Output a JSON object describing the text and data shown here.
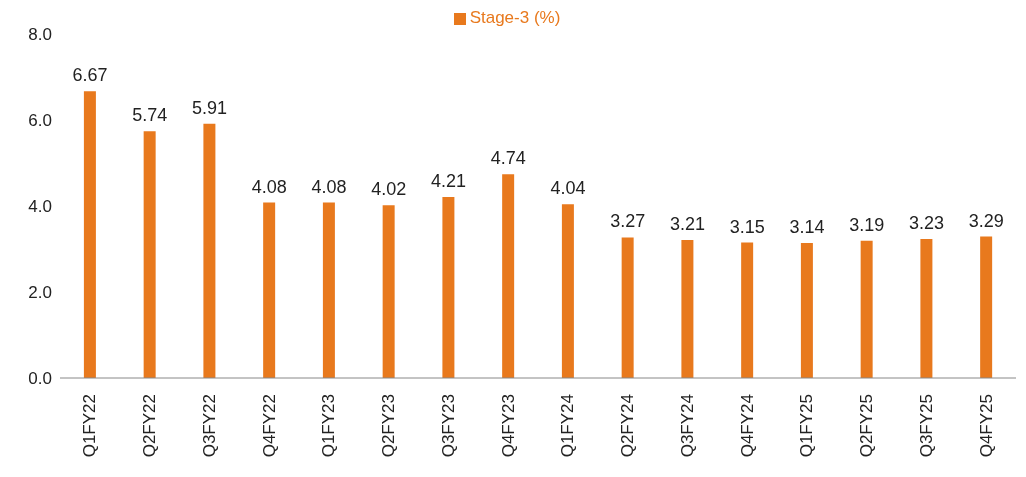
{
  "chart_data": {
    "type": "bar",
    "categories": [
      "Q1FY22",
      "Q2FY22",
      "Q3FY22",
      "Q4FY22",
      "Q1FY23",
      "Q2FY23",
      "Q3FY23",
      "Q4FY23",
      "Q1FY24",
      "Q2FY24",
      "Q3FY24",
      "Q4FY24",
      "Q1FY25",
      "Q2FY25",
      "Q3FY25",
      "Q4FY25"
    ],
    "series": [
      {
        "name": "Stage-3 (%)",
        "color": "#e8791d",
        "values": [
          6.67,
          5.74,
          5.91,
          4.08,
          4.08,
          4.02,
          4.21,
          4.74,
          4.04,
          3.27,
          3.21,
          3.15,
          3.14,
          3.19,
          3.23,
          3.29
        ]
      }
    ],
    "ylim": [
      0,
      8
    ],
    "yticks": [
      {
        "value": 0,
        "label": "0.0"
      },
      {
        "value": 2,
        "label": "2.0"
      },
      {
        "value": 4,
        "label": "4.0"
      },
      {
        "value": 6,
        "label": "6.0"
      },
      {
        "value": 8,
        "label": "8.0"
      }
    ],
    "data_labels": true,
    "legend": "top",
    "grid": false
  }
}
